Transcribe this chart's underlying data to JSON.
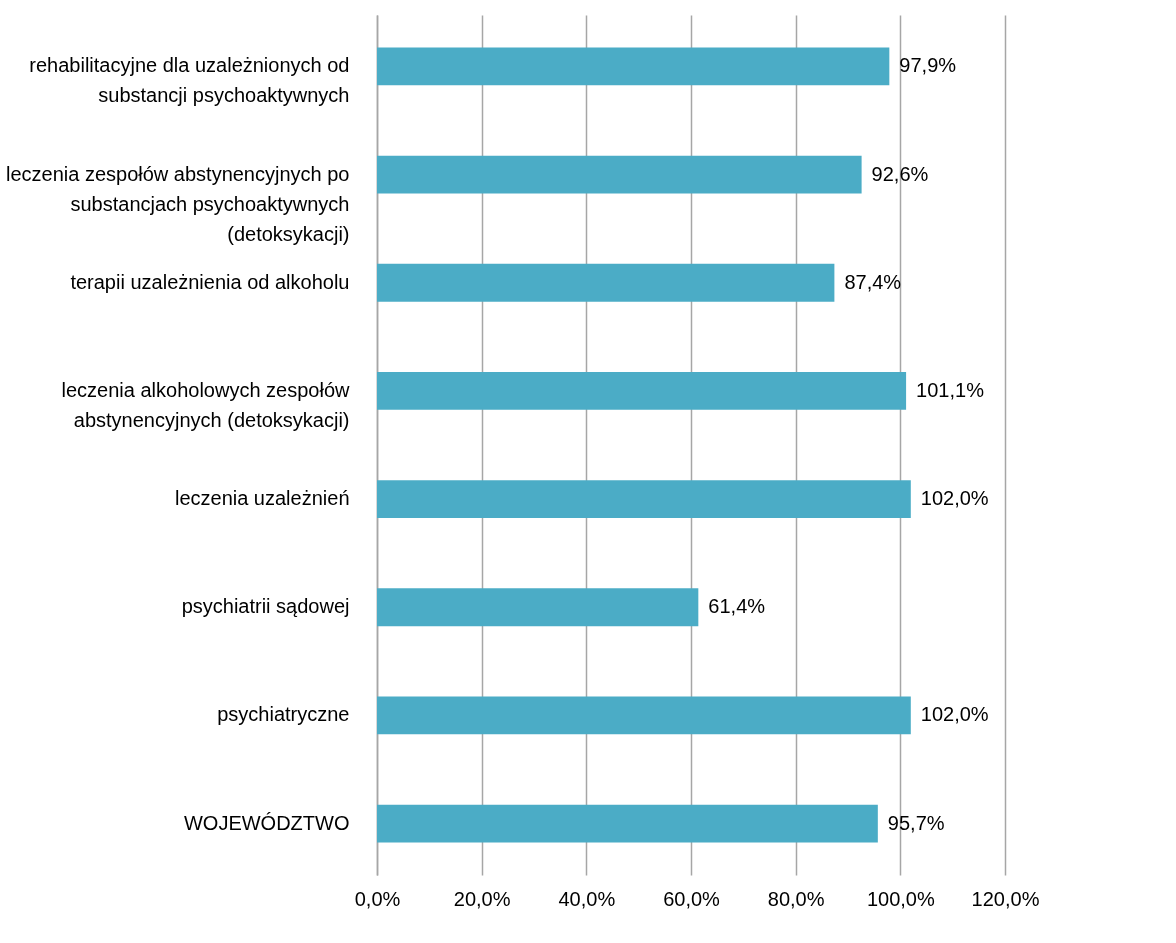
{
  "chart_data": {
    "type": "bar",
    "orientation": "horizontal",
    "categories": [
      "rehabilitacyjne dla uzależnionych od substancji psychoaktywnych",
      "leczenia zespołów abstynencyjnych po substancjach psychoaktywnych (detoksykacji)",
      "terapii uzależnienia od alkoholu",
      "leczenia alkoholowych zespołów abstynencyjnych (detoksykacji)",
      "leczenia uzależnień",
      "psychiatrii sądowej",
      "psychiatryczne",
      "WOJEWÓDZTWO"
    ],
    "values": [
      97.9,
      92.6,
      87.4,
      101.1,
      102.0,
      61.4,
      102.0,
      95.7
    ],
    "value_labels": [
      "97,9%",
      "92,6%",
      "87,4%",
      "101,1%",
      "102,0%",
      "61,4%",
      "102,0%",
      "95,7%"
    ],
    "color": "#4bacc6",
    "xlim": [
      0,
      120
    ],
    "xticks": [
      {
        "value": 0,
        "label": "0,0%"
      },
      {
        "value": 20,
        "label": "20,0%"
      },
      {
        "value": 40,
        "label": "40,0%"
      },
      {
        "value": 60,
        "label": "60,0%"
      },
      {
        "value": 80,
        "label": "80,0%"
      },
      {
        "value": 100,
        "label": "100,0%"
      },
      {
        "value": 120,
        "label": "120,0%"
      }
    ],
    "grid": "x"
  }
}
